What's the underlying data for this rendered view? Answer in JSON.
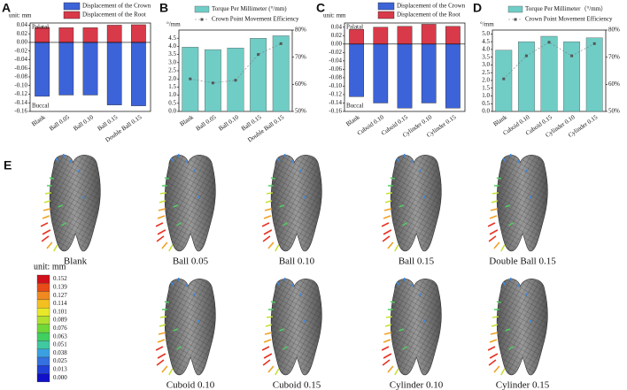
{
  "chart_data": [
    {
      "type": "bar",
      "panel": "A",
      "unit_label": "unit: mm",
      "top_label": "Palatal",
      "bottom_label": "Buccal",
      "categories": [
        "Blank",
        "Ball 0.05",
        "Ball 0.10",
        "Ball 0.15",
        "Double Ball 0.15"
      ],
      "series": [
        {
          "name": "Displacement of the Crown",
          "color": "#3d63d8",
          "values": [
            -0.125,
            -0.122,
            -0.122,
            -0.145,
            -0.147
          ]
        },
        {
          "name": "Displacement of the Root",
          "color": "#d83a4a",
          "values": [
            0.035,
            0.034,
            0.034,
            0.04,
            0.041
          ]
        }
      ],
      "ylim": [
        -0.16,
        0.045
      ],
      "yticks": [
        0.04,
        0.02,
        {
          "value": 0,
          "label": "0.00"
        },
        -0.02,
        -0.04,
        -0.06,
        -0.08,
        {
          "value": -0.1,
          "label": "-0.10"
        },
        -0.12,
        -0.14,
        -0.16
      ]
    },
    {
      "type": "combo",
      "panel": "B",
      "y_label": "°/mm",
      "categories": [
        "Blank",
        "Ball 0.05",
        "Ball 0.10",
        "Ball 0.15",
        "Double Ball 0.15"
      ],
      "series": [
        {
          "name": "Torque Per Millimeter (°/mm)",
          "color": "#6fcdc6",
          "values": [
            3.95,
            3.8,
            3.9,
            4.5,
            4.65
          ]
        },
        {
          "name": "Crown Point Movement Efficiency",
          "color": "#7a7a7a",
          "axis": "y2",
          "values": [
            62,
            60.5,
            61.5,
            71,
            75
          ]
        }
      ],
      "ylim": [
        0,
        5
      ],
      "yticks": [
        {
          "value": 0,
          "label": "0.0"
        },
        0.5,
        {
          "value": 1,
          "label": "1.0"
        },
        1.5,
        {
          "value": 2,
          "label": "2.0"
        },
        2.5,
        {
          "value": 3,
          "label": "3.0"
        },
        3.5,
        {
          "value": 4,
          "label": "4.0"
        },
        4.5
      ],
      "y2lim": [
        50,
        80
      ],
      "y2ticks": [
        {
          "value": 50,
          "label": "50%"
        },
        {
          "value": 60,
          "label": "60%"
        },
        {
          "value": 70,
          "label": "70%"
        },
        {
          "value": 80,
          "label": "80%"
        }
      ]
    },
    {
      "type": "bar",
      "panel": "C",
      "unit_label": "unit: mm",
      "top_label": "Palatal",
      "bottom_label": "Buccal",
      "categories": [
        "Blank",
        "Cuboid 0.10",
        "Cuboid 0.15",
        "Cylinder 0.10",
        "Cylinder 0.15"
      ],
      "series": [
        {
          "name": "Displacement of the Crown",
          "color": "#3d63d8",
          "values": [
            -0.125,
            -0.14,
            -0.152,
            -0.14,
            -0.152
          ]
        },
        {
          "name": "Displacement of the Root",
          "color": "#d83a4a",
          "values": [
            0.035,
            0.04,
            0.042,
            0.047,
            0.042
          ]
        }
      ],
      "ylim": [
        -0.16,
        0.05
      ],
      "yticks": [
        0.04,
        0.02,
        {
          "value": 0,
          "label": "0.00"
        },
        -0.02,
        -0.04,
        -0.06,
        -0.08,
        {
          "value": -0.1,
          "label": "-0.10"
        },
        -0.12,
        -0.14,
        -0.16
      ]
    },
    {
      "type": "combo",
      "panel": "D",
      "y_label": "°/mm",
      "categories": [
        "Blank",
        "Cuboid 0.10",
        "Cuboid 0.15",
        "Cylinder 0.10",
        "Cylinder 0.15"
      ],
      "series": [
        {
          "name": "Torque Per Millimeter（°/mm）",
          "color": "#6fcdc6",
          "values": [
            3.95,
            4.5,
            4.85,
            4.5,
            4.75
          ]
        },
        {
          "name": "Crown Point Movement Efficiency",
          "color": "#7a7a7a",
          "axis": "y2",
          "values": [
            62,
            70.5,
            75.5,
            70.5,
            75
          ]
        }
      ],
      "ylim": [
        0,
        5.25
      ],
      "yticks": [
        {
          "value": 0,
          "label": "0.0"
        },
        0.5,
        {
          "value": 1,
          "label": "1.0"
        },
        1.5,
        {
          "value": 2,
          "label": "2.0"
        },
        2.5,
        {
          "value": 3,
          "label": "3.0"
        },
        3.5,
        {
          "value": 4,
          "label": "4.0"
        },
        4.5,
        {
          "value": 5,
          "label": "5.0"
        }
      ],
      "y2lim": [
        50,
        80
      ],
      "y2ticks": [
        {
          "value": 50,
          "label": "50%"
        },
        {
          "value": 60,
          "label": "60%"
        },
        {
          "value": 70,
          "label": "70%"
        },
        {
          "value": 80,
          "label": "80%"
        }
      ]
    }
  ],
  "panel_e": {
    "panel": "E",
    "unit": "unit: mm",
    "models": [
      "Blank",
      "Ball 0.05",
      "Ball 0.10",
      "Ball 0.15",
      "Double Ball 0.15",
      "Cuboid 0.10",
      "Cuboid 0.15",
      "Cylinder 0.10",
      "Cylinder 0.15"
    ],
    "colorbar": [
      "0.152",
      "0.139",
      "0.127",
      "0.114",
      "0.101",
      "0.089",
      "0.076",
      "0.063",
      "0.051",
      "0.038",
      "0.025",
      "0.013",
      "0.000"
    ]
  }
}
